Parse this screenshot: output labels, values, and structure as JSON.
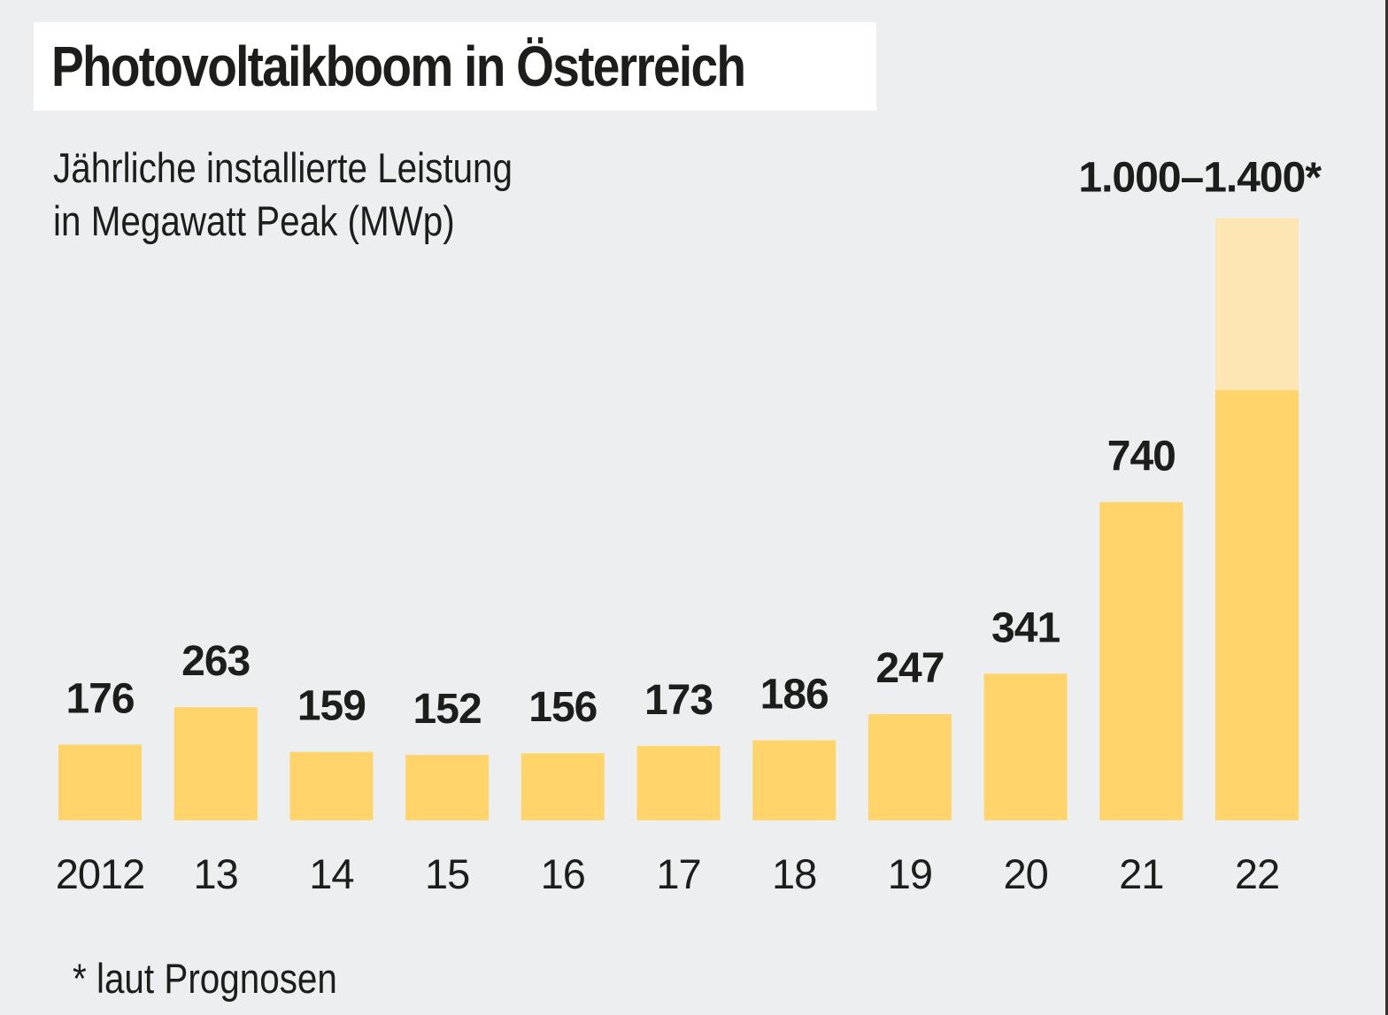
{
  "chart_data": {
    "type": "bar",
    "title": "Photovoltaikboom in Österreich",
    "subtitle_lines": [
      "Jährliche installierte Leistung",
      "in Megawatt Peak (MWp)"
    ],
    "categories": [
      "2012",
      "13",
      "14",
      "15",
      "16",
      "17",
      "18",
      "19",
      "20",
      "21",
      "22"
    ],
    "values": [
      176,
      263,
      159,
      152,
      156,
      173,
      186,
      247,
      341,
      740,
      1000
    ],
    "data_labels": [
      "176",
      "263",
      "159",
      "152",
      "156",
      "173",
      "186",
      "247",
      "341",
      "740",
      "1.000–1.400*"
    ],
    "forecast_range": {
      "category": "22",
      "low": 1000,
      "high": 1400
    },
    "ylim": [
      0,
      1400
    ],
    "grid": false,
    "footnote": "* laut Prognosen",
    "colors": {
      "bar": "#ffd56b",
      "forecast": "#fde6b3",
      "background": "#eceef0",
      "text": "#1d1d1b"
    }
  }
}
